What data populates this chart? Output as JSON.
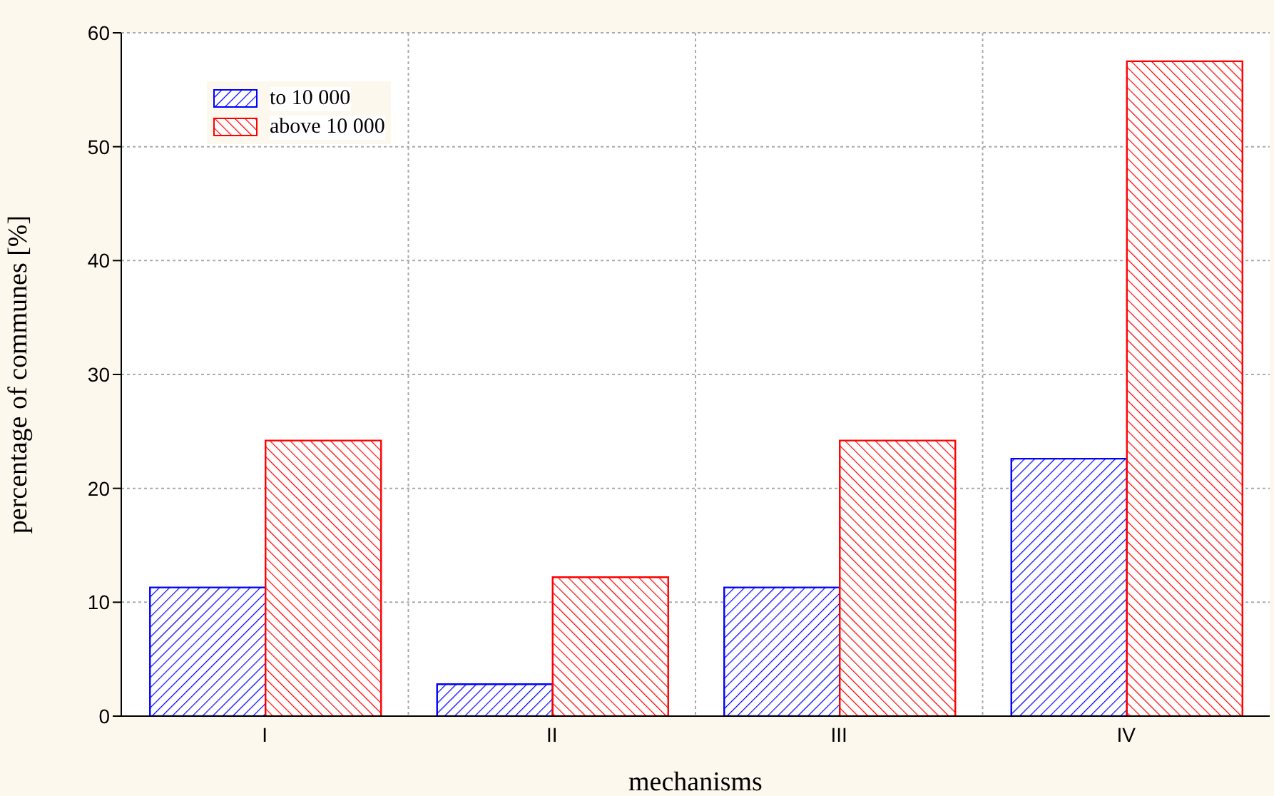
{
  "chart_data": {
    "type": "bar",
    "xlabel": "mechanisms",
    "ylabel": "percentage of communes [%]",
    "categories": [
      "I",
      "II",
      "III",
      "IV"
    ],
    "series": [
      {
        "name": "to 10 000",
        "color": "#0000ff",
        "values": [
          11.3,
          2.8,
          11.3,
          22.6
        ]
      },
      {
        "name": "above 10  000",
        "color": "#ff0000",
        "values": [
          24.2,
          12.2,
          24.2,
          57.5
        ]
      }
    ],
    "ylim": [
      0,
      60
    ],
    "yticks": [
      0,
      10,
      20,
      30,
      40,
      50,
      60
    ],
    "grid": true,
    "legend": "top left"
  }
}
